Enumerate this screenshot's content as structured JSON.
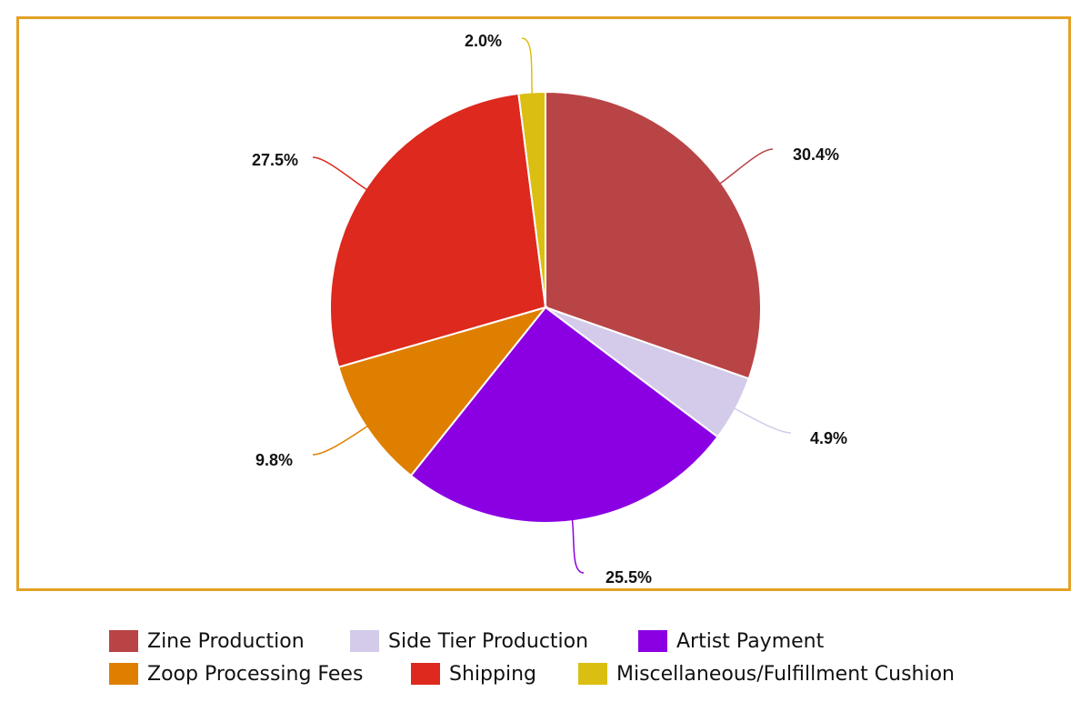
{
  "chart_data": {
    "type": "pie",
    "title": "",
    "legend_position": "bottom",
    "start_angle_deg": 0,
    "direction": "clockwise",
    "slices": [
      {
        "label": "Zine Production",
        "value": 30.4,
        "value_label": "30.4%",
        "color": "#b94446"
      },
      {
        "label": "Side Tier Production",
        "value": 4.9,
        "value_label": "4.9%",
        "color": "#d3cbe9"
      },
      {
        "label": "Artist Payment",
        "value": 25.5,
        "value_label": "25.5%",
        "color": "#8b00e2"
      },
      {
        "label": "Zoop Processing Fees",
        "value": 9.8,
        "value_label": "9.8%",
        "color": "#df7f00"
      },
      {
        "label": "Shipping",
        "value": 27.5,
        "value_label": "27.5%",
        "color": "#dd291e"
      },
      {
        "label": "Miscellaneous/Fulfillment Cushion",
        "value": 2.0,
        "value_label": "2.0%",
        "color": "#dbbe12"
      }
    ]
  },
  "frame_color": "#e3a125"
}
